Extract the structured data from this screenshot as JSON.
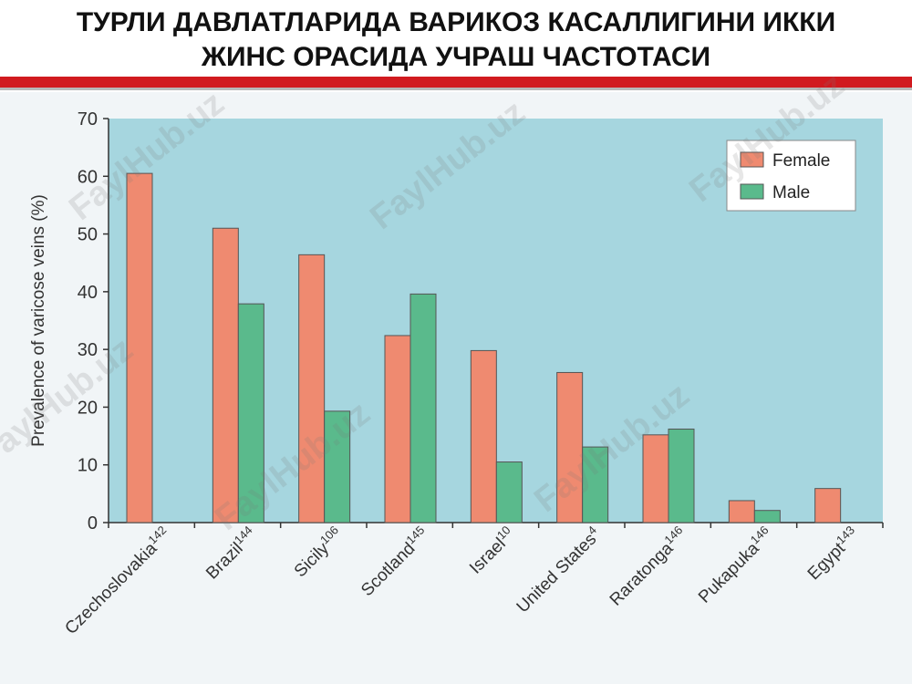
{
  "slide": {
    "title_lines": [
      "ТУРЛИ ДАВЛАТЛАРИДА ВАРИКОЗ КАСАЛЛИГИНИ ИККИ",
      "ЖИНС ОРАСИДА УЧРАШ ЧАСТОТАСИ"
    ],
    "watermark": "FaylHub.uz"
  },
  "colors": {
    "accent_bar": "#d11a1f",
    "plot_bg": "#a6d6df",
    "female": "#ef8a70",
    "male": "#5aba8c"
  },
  "chart_data": {
    "type": "bar",
    "categories": [
      "Czechoslovakia",
      "Brazil",
      "Sicily",
      "Scotland",
      "Israel",
      "United States",
      "Raratonga",
      "Pukapuka",
      "Egypt"
    ],
    "superscripts": [
      "142",
      "144",
      "106",
      "145",
      "10",
      "4",
      "146",
      "146",
      "143"
    ],
    "series": [
      {
        "name": "Female",
        "values": [
          60.5,
          51,
          46.4,
          32.4,
          29.8,
          26,
          15.2,
          3.8,
          5.9
        ]
      },
      {
        "name": "Male",
        "values": [
          null,
          37.9,
          19.3,
          39.6,
          10.5,
          13.1,
          16.2,
          2.1,
          null
        ]
      }
    ],
    "xlabel": "",
    "ylabel": "Prevalence of varicose veins (%)",
    "ylim": [
      0,
      70
    ],
    "yticks": [
      0,
      10,
      20,
      30,
      40,
      50,
      60,
      70
    ],
    "grid": false,
    "legend_position": "top-right"
  }
}
